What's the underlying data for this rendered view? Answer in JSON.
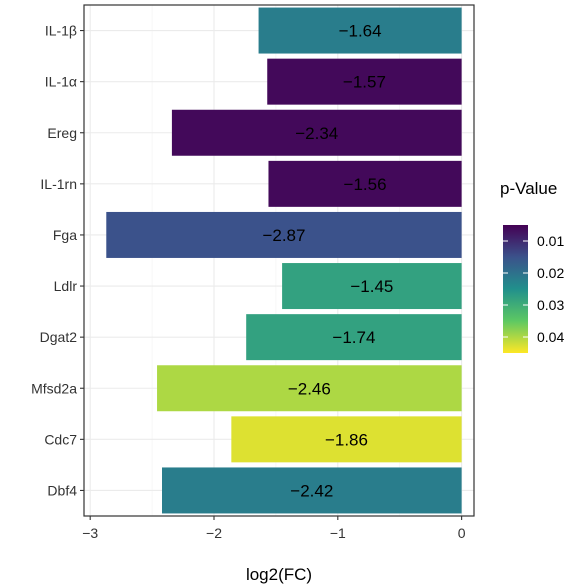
{
  "chart_data": {
    "type": "bar",
    "orientation": "horizontal",
    "categories": [
      "IL-1β",
      "IL-1α",
      "Ereg",
      "IL-1rn",
      "Fga",
      "Ldlr",
      "Dgat2",
      "Mfsd2a",
      "Cdc7",
      "Dbf4"
    ],
    "values": [
      -1.64,
      -1.57,
      -2.34,
      -1.56,
      -2.87,
      -1.45,
      -1.74,
      -2.46,
      -1.86,
      -2.42
    ],
    "labels": [
      "−1.64",
      "−1.57",
      "−2.34",
      "−1.56",
      "−2.87",
      "−1.45",
      "−1.74",
      "−2.46",
      "−1.86",
      "−2.42"
    ],
    "p_values": [
      0.022,
      0.006,
      0.006,
      0.006,
      0.015,
      0.028,
      0.028,
      0.04,
      0.043,
      0.022
    ],
    "xlabel": "log2(FC)",
    "ylabel": "",
    "xlim": [
      -3.05,
      0.1
    ],
    "x_ticks": [
      -3,
      -2,
      -1,
      0
    ],
    "x_tick_labels": [
      "−3",
      "−2",
      "−1",
      "0"
    ],
    "grid": true,
    "legend": {
      "title": "p-Value",
      "position": "right",
      "range": [
        0.005,
        0.045
      ],
      "ticks": [
        0.01,
        0.02,
        0.03,
        0.04
      ],
      "tick_labels": [
        "0.01",
        "0.02",
        "0.03",
        "0.04"
      ],
      "colormap": "viridis-reversed"
    },
    "colors": {
      "panel_border": "#333333",
      "grid": "#ebebeb",
      "viridis_stops": [
        "#440154",
        "#3b528b",
        "#21908c",
        "#5dc863",
        "#fde725"
      ]
    }
  }
}
